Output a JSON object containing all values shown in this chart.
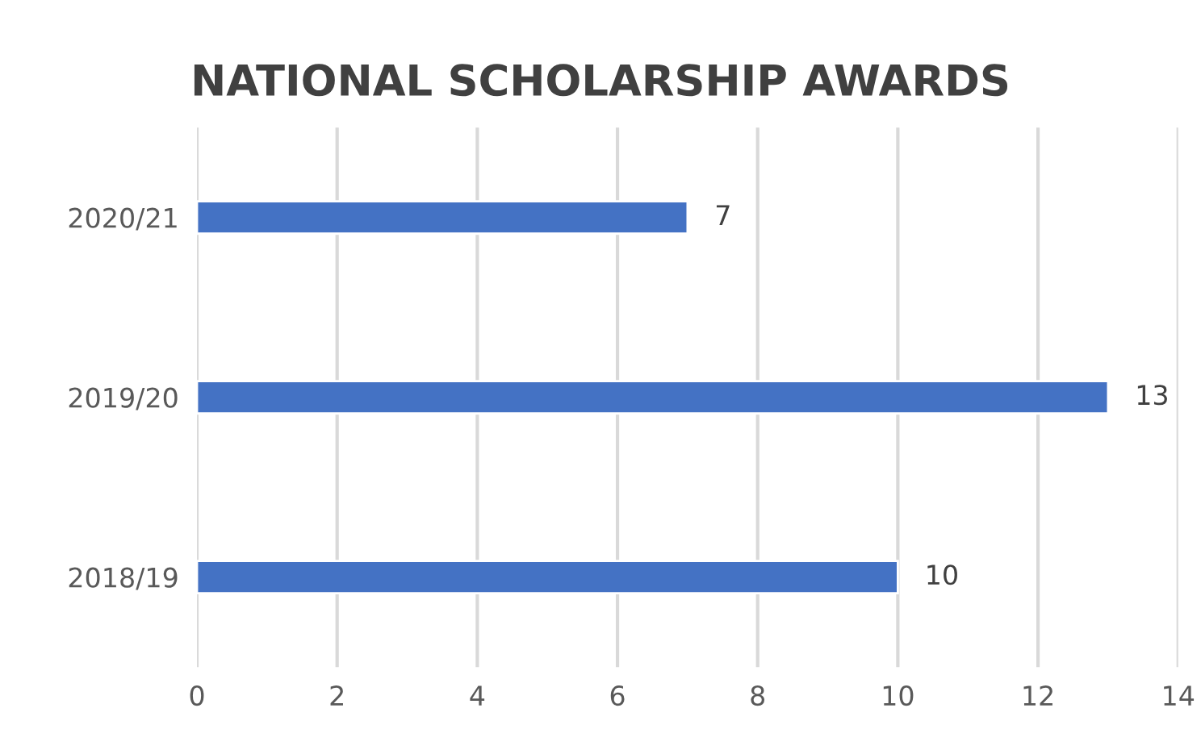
{
  "chart_data": {
    "type": "bar",
    "title": "NATIONAL SCHOLARSHIP AWARDS",
    "orientation": "horizontal",
    "categories": [
      "2020/21",
      "2019/20",
      "2018/19"
    ],
    "values": [
      7,
      13,
      10
    ],
    "color": "#4472c4",
    "xlim": [
      0,
      14
    ],
    "xticks": [
      0,
      2,
      4,
      6,
      8,
      10,
      12,
      14
    ],
    "grid": "x",
    "data_labels": true
  }
}
